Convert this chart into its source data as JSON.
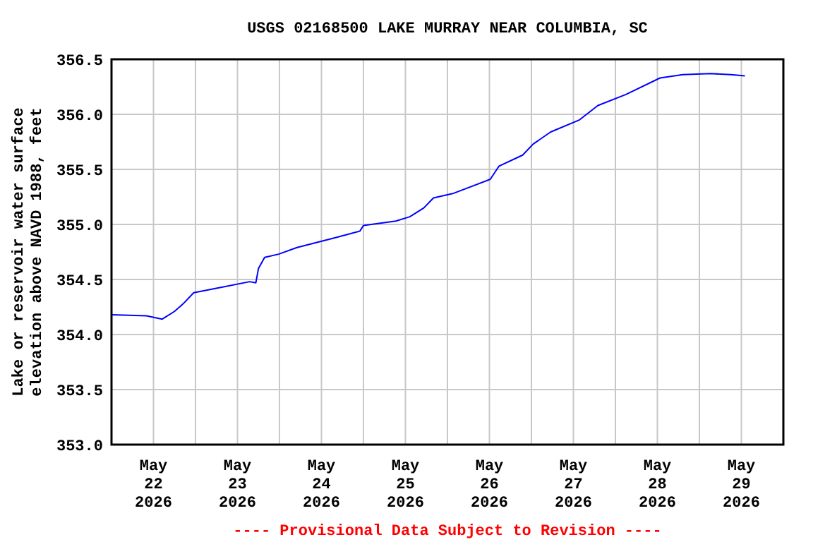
{
  "chart_data": {
    "type": "line",
    "title": "USGS 02168500 LAKE MURRAY NEAR COLUMBIA, SC",
    "ylabel": "Lake or reservoir water surface\nelevation above NAVD 1988, feet",
    "annotations": [
      "---- Provisional Data Subject to Revision ----"
    ],
    "x": [
      "2026-05-22T00:00",
      "2026-05-22T10:00",
      "2026-05-22T14:30",
      "2026-05-22T18:00",
      "2026-05-22T20:30",
      "2026-05-22T23:30",
      "2026-05-23T07:30",
      "2026-05-23T15:30",
      "2026-05-23T17:15",
      "2026-05-23T18:00",
      "2026-05-23T19:45",
      "2026-05-23T23:45",
      "2026-05-24T05:00",
      "2026-05-24T16:00",
      "2026-05-24T23:00",
      "2026-05-25T00:00",
      "2026-05-25T09:15",
      "2026-05-25T13:15",
      "2026-05-25T17:15",
      "2026-05-25T20:00",
      "2026-05-26T01:30",
      "2026-05-26T12:15",
      "2026-05-26T14:45",
      "2026-05-26T21:30",
      "2026-05-27T00:30",
      "2026-05-27T05:30",
      "2026-05-27T13:45",
      "2026-05-27T19:00",
      "2026-05-28T03:00",
      "2026-05-28T12:45",
      "2026-05-28T19:15",
      "2026-05-29T03:15",
      "2026-05-29T09:00",
      "2026-05-29T13:00"
    ],
    "series": [
      {
        "color": "#0000ff",
        "values": [
          354.18,
          354.17,
          354.14,
          354.21,
          354.28,
          354.38,
          354.43,
          354.48,
          354.47,
          354.6,
          354.7,
          354.73,
          354.79,
          354.88,
          354.94,
          354.99,
          355.03,
          355.07,
          355.15,
          355.24,
          355.28,
          355.41,
          355.53,
          355.63,
          355.73,
          355.84,
          355.95,
          356.08,
          356.18,
          356.33,
          356.36,
          356.37,
          356.36,
          356.35
        ]
      }
    ],
    "xlim": [
      "2026-05-22T00:00",
      "2026-05-30T00:00"
    ],
    "xticks": [
      {
        "value": "2026-05-22T00:00",
        "label": null
      },
      {
        "value": "2026-05-22T12:00",
        "label": "May\n22\n2026"
      },
      {
        "value": "2026-05-23T00:00",
        "label": null
      },
      {
        "value": "2026-05-23T12:00",
        "label": "May\n23\n2026"
      },
      {
        "value": "2026-05-24T00:00",
        "label": null
      },
      {
        "value": "2026-05-24T12:00",
        "label": "May\n24\n2026"
      },
      {
        "value": "2026-05-25T00:00",
        "label": null
      },
      {
        "value": "2026-05-25T12:00",
        "label": "May\n25\n2026"
      },
      {
        "value": "2026-05-26T00:00",
        "label": null
      },
      {
        "value": "2026-05-26T12:00",
        "label": "May\n26\n2026"
      },
      {
        "value": "2026-05-27T00:00",
        "label": null
      },
      {
        "value": "2026-05-27T12:00",
        "label": "May\n27\n2026"
      },
      {
        "value": "2026-05-28T00:00",
        "label": null
      },
      {
        "value": "2026-05-28T12:00",
        "label": "May\n28\n2026"
      },
      {
        "value": "2026-05-29T00:00",
        "label": null
      },
      {
        "value": "2026-05-29T12:00",
        "label": "May\n29\n2026"
      },
      {
        "value": "2026-05-30T00:00",
        "label": null
      }
    ],
    "ylim": [
      353,
      356.5
    ],
    "yticks": [
      {
        "value": 353,
        "label": "353.0"
      },
      {
        "value": 353.5,
        "label": "353.5"
      },
      {
        "value": 354,
        "label": "354.0"
      },
      {
        "value": 354.5,
        "label": "354.5"
      },
      {
        "value": 355,
        "label": "355.0"
      },
      {
        "value": 355.5,
        "label": "355.5"
      },
      {
        "value": 356,
        "label": "356.0"
      },
      {
        "value": 356.5,
        "label": "356.5"
      }
    ],
    "grid": true,
    "marker": "none",
    "line_style": "solid"
  }
}
